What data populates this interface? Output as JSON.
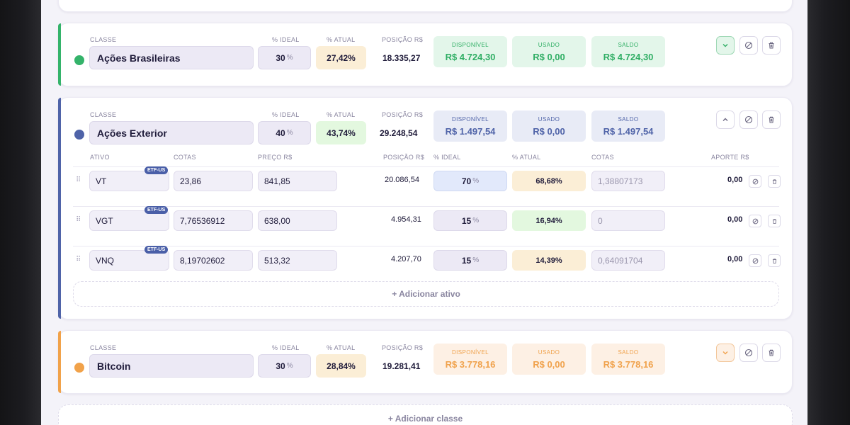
{
  "labels": {
    "classe": "CLASSE",
    "ideal": "% IDEAL",
    "atual": "% ATUAL",
    "posicao": "POSIÇÃO R$",
    "disponivel": "DISPONÍVEL",
    "usado": "USADO",
    "saldo": "SALDO",
    "pct_sign": "%"
  },
  "classes": [
    {
      "name": "Ações Brasileiras",
      "ideal": "30",
      "atual": "27,42%",
      "posicao": "18.335,27",
      "disponivel": "R$ 4.724,30",
      "usado": "R$ 0,00",
      "saldo": "R$ 4.724,30",
      "color": "#34b36a"
    },
    {
      "name": "Ações Exterior",
      "ideal": "40",
      "atual": "43,74%",
      "posicao": "29.248,54",
      "disponivel": "R$ 1.497,54",
      "usado": "R$ 0,00",
      "saldo": "R$ 1.497,54",
      "color": "#4f63a8"
    },
    {
      "name": "Bitcoin",
      "ideal": "30",
      "atual": "28,84%",
      "posicao": "19.281,41",
      "disponivel": "R$ 3.778,16",
      "usado": "R$ 0,00",
      "saldo": "R$ 3.778,16",
      "color": "#f1a24a"
    }
  ],
  "asset_headers": {
    "ativo": "ATIVO",
    "cotas": "COTAS",
    "preco": "PREÇO R$",
    "posicao": "POSIÇÃO R$",
    "ideal": "% IDEAL",
    "atual": "% ATUAL",
    "cotas2": "COTAS",
    "aporte": "APORTE R$"
  },
  "assets": [
    {
      "ticker": "VT",
      "badge": "ETF-US",
      "cotas": "23,86",
      "preco": "841,85",
      "posicao": "20.086,54",
      "ideal": "70",
      "atual": "68,68%",
      "cotas_aporte": "1,38807173",
      "aporte": "0,00"
    },
    {
      "ticker": "VGT",
      "badge": "ETF-US",
      "cotas": "7,76536912",
      "preco": "638,00",
      "posicao": "4.954,31",
      "ideal": "15",
      "atual": "16,94%",
      "cotas_aporte": "0",
      "aporte": "0,00"
    },
    {
      "ticker": "VNQ",
      "badge": "ETF-US",
      "cotas": "8,19702602",
      "preco": "513,32",
      "posicao": "4.207,70",
      "ideal": "15",
      "atual": "14,39%",
      "cotas_aporte": "0,64091704",
      "aporte": "0,00"
    }
  ],
  "add_asset": "+ Adicionar ativo",
  "add_class": "+ Adicionar classe",
  "colors": {
    "green_bg": "#e3f6ea",
    "green_fg": "#2fae64",
    "blue_bg": "#e8ebf6",
    "blue_fg": "#4f63a8",
    "orange_bg": "#fdf0e4",
    "orange_fg": "#f0a24c",
    "warn_bg": "#fbeed6",
    "ok_bg": "#e3f8df",
    "ideal_blue_bg": "#e2e9fb"
  },
  "icons": [
    "chevron-down-icon",
    "chevron-up-icon",
    "ban-icon",
    "trash-icon",
    "grip-icon"
  ]
}
